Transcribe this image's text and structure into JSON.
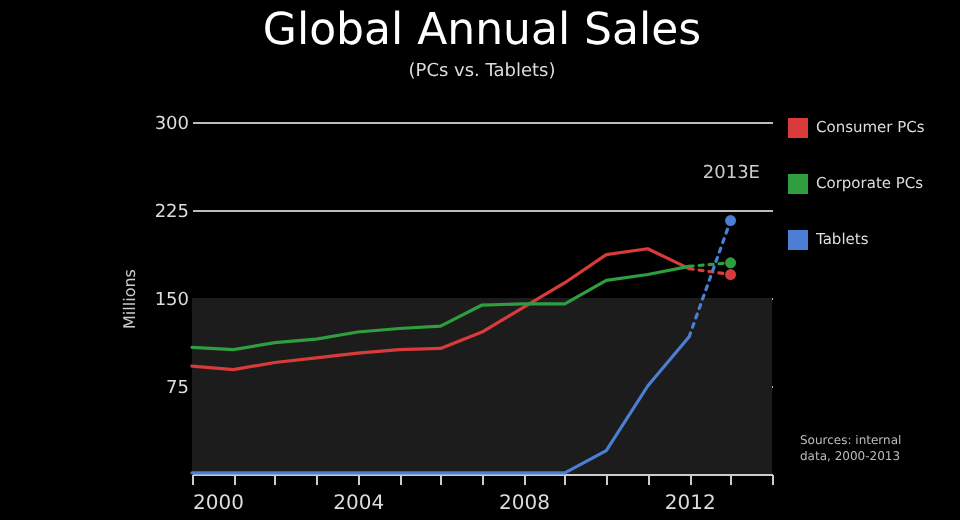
{
  "chart_data": {
    "type": "line",
    "title": "Global Annual Sales",
    "subtitle": "(PCs vs. Tablets)",
    "ylabel": "Millions",
    "x": [
      2000,
      2001,
      2002,
      2003,
      2004,
      2005,
      2006,
      2007,
      2008,
      2009,
      2010,
      2011,
      2012,
      2013
    ],
    "series": [
      {
        "name": "Consumer PCs",
        "color": "#d93a3a",
        "values": [
          92,
          89,
          95,
          99,
          103,
          106,
          107,
          121,
          142,
          163,
          187,
          192,
          175,
          null
        ]
      },
      {
        "name": "Corporate PCs",
        "color": "#2e9e3e",
        "values": [
          108,
          106,
          112,
          115,
          121,
          124,
          126,
          144,
          145,
          145,
          165,
          170,
          177,
          null
        ]
      },
      {
        "name": "Tablets",
        "color": "#4a7fd4",
        "values": [
          1,
          1,
          1,
          1,
          1,
          1,
          1,
          1,
          1,
          1,
          20,
          75,
          117,
          null
        ]
      },
      {
        "type": "line",
        "line_style": "dotted",
        "color": "#d93a3a",
        "values": [
          null,
          null,
          null,
          null,
          null,
          null,
          null,
          null,
          null,
          null,
          null,
          null,
          175,
          170
        ]
      },
      {
        "type": "line",
        "line_style": "dotted",
        "color": "#2e9e3e",
        "values": [
          null,
          null,
          null,
          null,
          null,
          null,
          null,
          null,
          null,
          null,
          null,
          null,
          177,
          180
        ]
      },
      {
        "type": "line",
        "line_style": "dotted",
        "color": "#4a7fd4",
        "values": [
          null,
          null,
          null,
          null,
          null,
          null,
          null,
          null,
          null,
          null,
          null,
          null,
          117,
          216
        ]
      },
      {
        "type": "scatter",
        "marker": "circle",
        "color": "#d93a3a",
        "values": [
          null,
          null,
          null,
          null,
          null,
          null,
          null,
          null,
          null,
          null,
          null,
          null,
          null,
          170
        ]
      },
      {
        "type": "scatter",
        "marker": "circle",
        "color": "#2e9e3e",
        "values": [
          null,
          null,
          null,
          null,
          null,
          null,
          null,
          null,
          null,
          null,
          null,
          null,
          null,
          180
        ]
      },
      {
        "type": "scatter",
        "marker": "circle",
        "color": "#4a7fd4",
        "values": [
          null,
          null,
          null,
          null,
          null,
          null,
          null,
          null,
          null,
          null,
          null,
          null,
          null,
          216
        ]
      }
    ],
    "xlim": [
      2000,
      2014
    ],
    "xticks": [
      2000,
      {
        "value": 2001,
        "label": null
      },
      {
        "value": 2002,
        "label": null
      },
      {
        "value": 2003,
        "label": null
      },
      2004,
      {
        "value": 2005,
        "label": null
      },
      {
        "value": 2006,
        "label": null
      },
      {
        "value": 2007,
        "label": null
      },
      2008,
      {
        "value": 2009,
        "label": null
      },
      {
        "value": 2010,
        "label": null
      },
      {
        "value": 2011,
        "label": null
      },
      2012,
      {
        "value": 2013,
        "label": null
      },
      {
        "value": 2014,
        "label": null
      }
    ],
    "ylim": [
      0,
      300
    ],
    "yticks": [
      75,
      150,
      225,
      300
    ],
    "grid": "y",
    "legend": "right",
    "line_style": "solid",
    "marker": "none",
    "bands": [
      {
        "axis": "y",
        "from": 0,
        "to": 150,
        "color": "#1c1c1c"
      }
    ],
    "annotations": [
      "2013E",
      "Sources: internal data, 2000-2013"
    ]
  }
}
